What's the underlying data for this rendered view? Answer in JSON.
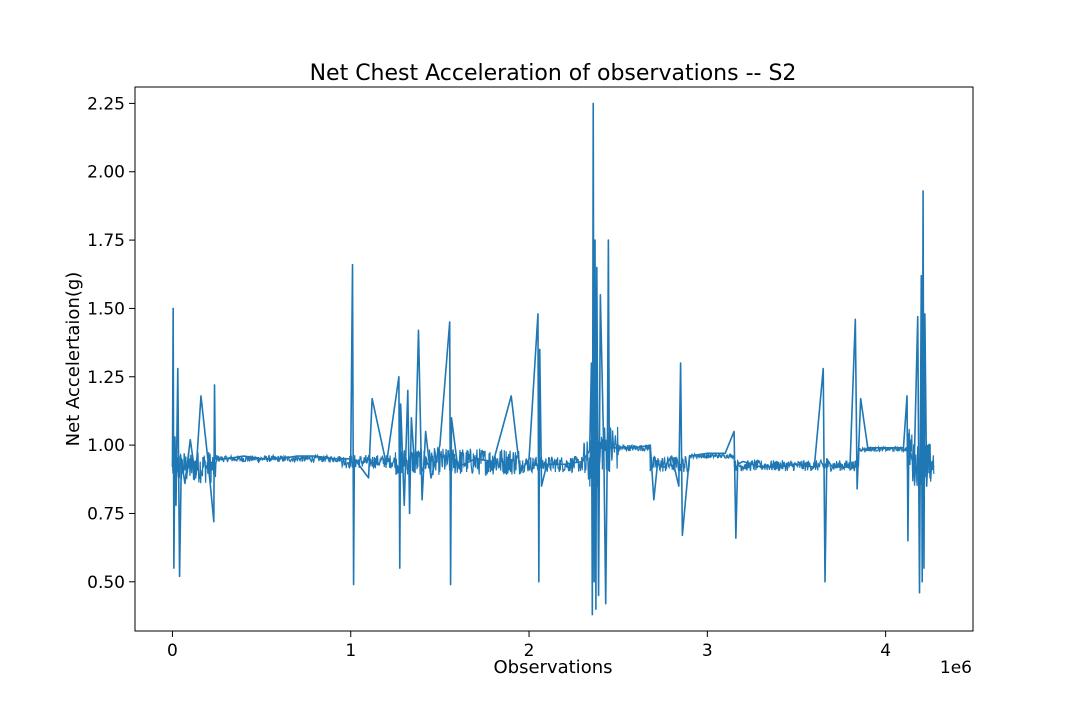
{
  "chart_data": {
    "type": "line",
    "title": "Net Chest Acceleration of observations -- S2",
    "xlabel": "Observations",
    "ylabel": "Net Accelertaion(g)",
    "x_multiplier_label": "1e6",
    "xlim": [
      -0.21,
      4.49
    ],
    "ylim": [
      0.32,
      2.31
    ],
    "xticks": [
      0,
      1,
      2,
      3,
      4
    ],
    "xtick_labels": [
      "0",
      "1",
      "2",
      "3",
      "4"
    ],
    "yticks": [
      0.5,
      0.75,
      1.0,
      1.25,
      1.5,
      1.75,
      2.0,
      2.25
    ],
    "ytick_labels": [
      "0.50",
      "0.75",
      "1.00",
      "1.25",
      "1.50",
      "1.75",
      "2.00",
      "2.25"
    ],
    "grid": false,
    "color": "#1f77b4",
    "series": [
      {
        "x": [
          0.0,
          0.004,
          0.008,
          0.014,
          0.02,
          0.03,
          0.04,
          0.05,
          0.07,
          0.1,
          0.13,
          0.16,
          0.2,
          0.232,
          0.236,
          0.24,
          0.3,
          0.4,
          0.5,
          0.6,
          0.7,
          0.8,
          0.9,
          1.0,
          1.01,
          1.016,
          1.02,
          1.1,
          1.12,
          1.2,
          1.27,
          1.275,
          1.28,
          1.3,
          1.32,
          1.33,
          1.34,
          1.36,
          1.38,
          1.4,
          1.42,
          1.45,
          1.5,
          1.555,
          1.56,
          1.565,
          1.6,
          1.7,
          1.8,
          1.9,
          1.95,
          2.0,
          2.05,
          2.055,
          2.06,
          2.07,
          2.1,
          2.2,
          2.3,
          2.34,
          2.35,
          2.355,
          2.36,
          2.365,
          2.37,
          2.375,
          2.38,
          2.39,
          2.4,
          2.42,
          2.43,
          2.44,
          2.445,
          2.45,
          2.5,
          2.6,
          2.68,
          2.7,
          2.72,
          2.76,
          2.8,
          2.84,
          2.85,
          2.86,
          2.9,
          3.0,
          3.1,
          3.15,
          3.16,
          3.17,
          3.2,
          3.3,
          3.4,
          3.5,
          3.6,
          3.65,
          3.66,
          3.67,
          3.7,
          3.8,
          3.83,
          3.84,
          3.86,
          3.9,
          4.0,
          4.1,
          4.12,
          4.125,
          4.13,
          4.16,
          4.18,
          4.19,
          4.2,
          4.205,
          4.21,
          4.215,
          4.22,
          4.23,
          4.24,
          4.25,
          4.26,
          4.27
        ],
        "y": [
          0.92,
          1.5,
          0.55,
          1.03,
          0.78,
          1.28,
          0.52,
          0.95,
          0.86,
          1.02,
          0.88,
          1.18,
          0.94,
          0.72,
          1.22,
          0.95,
          0.95,
          0.96,
          0.95,
          0.95,
          0.96,
          0.96,
          0.95,
          0.95,
          1.66,
          0.49,
          0.95,
          0.88,
          1.17,
          0.93,
          1.25,
          0.55,
          1.15,
          0.78,
          1.2,
          0.75,
          1.1,
          0.9,
          1.42,
          0.8,
          1.05,
          0.88,
          1.0,
          1.45,
          0.49,
          1.1,
          0.92,
          0.95,
          0.94,
          1.18,
          0.9,
          0.95,
          1.48,
          0.5,
          1.35,
          0.85,
          0.93,
          0.93,
          0.94,
          0.98,
          1.3,
          0.38,
          2.25,
          0.5,
          1.75,
          0.4,
          1.65,
          0.45,
          1.55,
          0.95,
          0.42,
          1.05,
          1.75,
          0.99,
          0.99,
          0.99,
          1.0,
          0.8,
          0.93,
          0.92,
          0.96,
          0.85,
          1.3,
          0.67,
          0.96,
          0.97,
          0.97,
          1.05,
          0.66,
          0.93,
          0.94,
          0.92,
          0.92,
          0.93,
          0.92,
          1.28,
          0.5,
          0.95,
          0.92,
          0.92,
          1.46,
          0.84,
          1.17,
          0.99,
          0.99,
          0.99,
          1.18,
          0.65,
          0.99,
          0.92,
          1.47,
          0.46,
          1.62,
          0.5,
          1.93,
          0.55,
          1.48,
          0.85,
          1.0,
          0.88,
          0.94,
          0.92
        ]
      }
    ]
  }
}
